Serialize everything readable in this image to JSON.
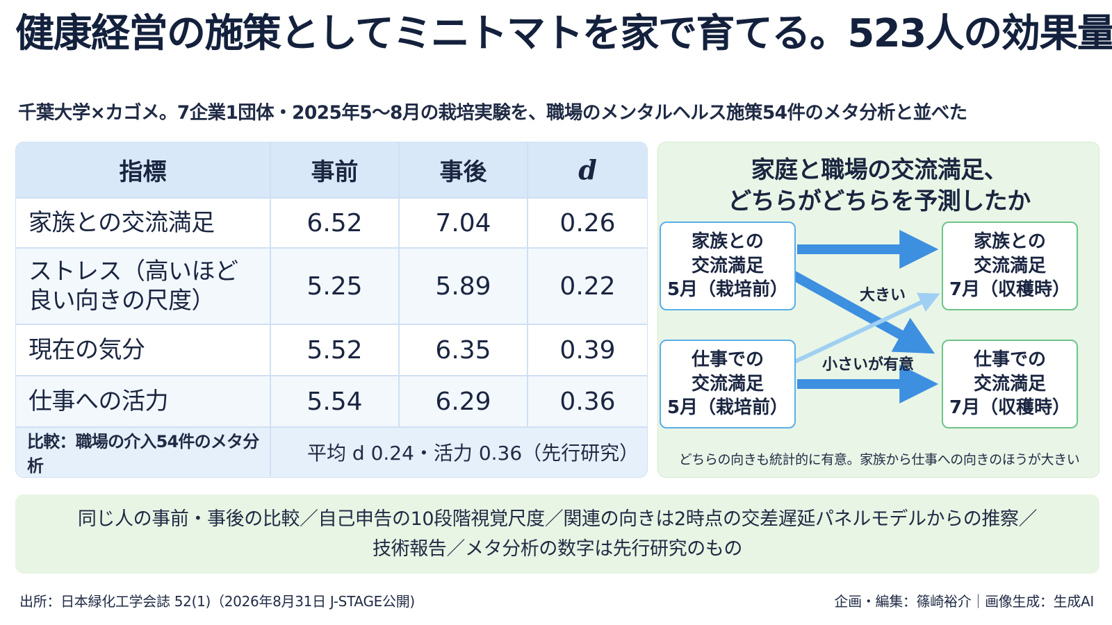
{
  "title": "健康経営の施策としてミニトマトを家で育てる。523人の効果量",
  "subtitle": "千葉大学×カゴメ。7企業1団体・2025年5〜8月の栽培実験を、職場のメンタルヘルス施策54件のメタ分析と並べた",
  "table": {
    "headers": {
      "metric": "指標",
      "pre": "事前",
      "post": "事後",
      "d": "d"
    },
    "rows": [
      {
        "metric": "家族との交流満足",
        "pre": "6.52",
        "post": "7.04",
        "d": "0.26"
      },
      {
        "metric_line1": "ストレス（高いほど",
        "metric_line2": "良い向きの尺度）",
        "pre": "5.25",
        "post": "5.89",
        "d": "0.22"
      },
      {
        "metric": "現在の気分",
        "pre": "5.52",
        "post": "6.35",
        "d": "0.39"
      },
      {
        "metric": "仕事への活力",
        "pre": "5.54",
        "post": "6.29",
        "d": "0.36"
      }
    ],
    "comparison": {
      "label": "比較：職場の介入54件のメタ分析",
      "value": "平均 d 0.24・活力 0.36（先行研究）"
    }
  },
  "diagram": {
    "title_line1": "家庭と職場の交流満足、",
    "title_line2": "どちらがどちらを予測したか",
    "nodes": {
      "family_may": {
        "line1": "家族との",
        "line2": "交流満足",
        "line3": "5月（栽培前）"
      },
      "work_may": {
        "line1": "仕事での",
        "line2": "交流満足",
        "line3": "5月（栽培前）"
      },
      "family_jul": {
        "line1": "家族との",
        "line2": "交流満足",
        "line3": "7月（収穫時）"
      },
      "work_jul": {
        "line1": "仕事での",
        "line2": "交流満足",
        "line3": "7月（収穫時）"
      }
    },
    "labels": {
      "large": "大きい",
      "small": "小さいが有意"
    },
    "note": "どちらの向きも統計的に有意。家族から仕事への向きのほうが大きい",
    "colors": {
      "arrow_strong": "#3d8fe0",
      "arrow_light": "#9fd0f3",
      "node_blue": "#5aaee6",
      "node_green": "#6cc48a"
    }
  },
  "method": {
    "line1": "同じ人の事前・事後の比較／自己申告の10段階視覚尺度／関連の向きは2時点の交差遅延パネルモデルからの推察／",
    "line2": "技術報告／メタ分析の数字は先行研究のもの"
  },
  "footer": {
    "source": "出所：日本緑化工学会誌 52(1)（2026年8月31日 J-STAGE公開)",
    "credit": "企画・編集：篠崎裕介｜画像生成：生成AI"
  }
}
